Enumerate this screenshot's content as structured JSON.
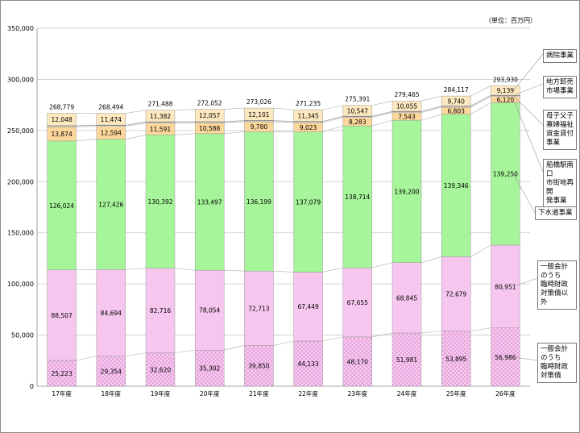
{
  "chart_data": {
    "type": "bar",
    "stacked": true,
    "unit_label": "（単位：百万円）",
    "categories": [
      "17年度",
      "18年度",
      "19年度",
      "20年度",
      "21年度",
      "22年度",
      "23年度",
      "24年度",
      "25年度",
      "26年度"
    ],
    "totals": [
      "268,779",
      "268,494",
      "271,488",
      "272,052",
      "273,026",
      "271,235",
      "275,391",
      "279,465",
      "284,117",
      "293,930"
    ],
    "ylim": [
      0,
      350000
    ],
    "yticks": [
      "0",
      "50,000",
      "100,000",
      "150,000",
      "200,000",
      "250,000",
      "300,000",
      "350,000"
    ],
    "grid": true,
    "legend_position": "right",
    "series": [
      {
        "name": "一般会計のうち臨時財政対策債",
        "values": [
          25223,
          29354,
          32620,
          35302,
          39850,
          44133,
          48170,
          51981,
          53895,
          56986
        ],
        "labels": [
          "25,223",
          "29,354",
          "32,620",
          "35,302",
          "39,850",
          "44,133",
          "48,170",
          "51,981",
          "53,895",
          "56,986"
        ],
        "color": "#f3c6ec",
        "pattern": "crosshatch"
      },
      {
        "name": "一般会計のうち臨時財政対策債以外",
        "values": [
          88507,
          84694,
          82716,
          78054,
          72713,
          67449,
          67655,
          68845,
          72679,
          80951
        ],
        "labels": [
          "88,507",
          "84,694",
          "82,716",
          "78,054",
          "72,713",
          "67,449",
          "67,655",
          "68,845",
          "72,679",
          "80,951"
        ],
        "color": "#f6c6ee"
      },
      {
        "name": "下水道事業",
        "values": [
          126024,
          127426,
          130392,
          133497,
          136199,
          137079,
          138714,
          139200,
          139346,
          139250
        ],
        "labels": [
          "126,024",
          "127,426",
          "130,392",
          "133,497",
          "136,199",
          "137,079",
          "138,714",
          "139,200",
          "139,346",
          "139,250"
        ],
        "color": "#a6f59a"
      },
      {
        "name": "船橋駅南口市街地再開発事業",
        "values": [
          13874,
          12594,
          11591,
          10588,
          9780,
          9023,
          8283,
          7543,
          6803,
          6120
        ],
        "labels": [
          "13,874",
          "12,594",
          "11,591",
          "10,588",
          "9,780",
          "9,023",
          "8,283",
          "7,543",
          "6,803",
          "6,120"
        ],
        "color": "#fcd79c"
      },
      {
        "name": "母子父子寡婦福祉資金貸付事業",
        "values": [
          900,
          900,
          900,
          900,
          900,
          900,
          900,
          900,
          900,
          900
        ],
        "labels": [
          "",
          "",
          "",
          "",
          "",
          "",
          "",
          "",
          "",
          ""
        ],
        "color": "#ffffff"
      },
      {
        "name": "地方卸売市場事業",
        "values": [
          350,
          350,
          350,
          350,
          350,
          350,
          350,
          350,
          350,
          350
        ],
        "labels": [
          "",
          "",
          "",
          "",
          "",
          "",
          "",
          "",
          "",
          ""
        ],
        "color": "#a0a0a0"
      },
      {
        "name": "病院事業",
        "values": [
          12048,
          11474,
          11382,
          12057,
          12101,
          11345,
          10547,
          10055,
          9740,
          9139
        ],
        "labels": [
          "12,048",
          "11,474",
          "11,382",
          "12,057",
          "12,101",
          "11,345",
          "10,547",
          "10,055",
          "9,740",
          "9,139"
        ],
        "color": "#fde9bf"
      }
    ]
  }
}
